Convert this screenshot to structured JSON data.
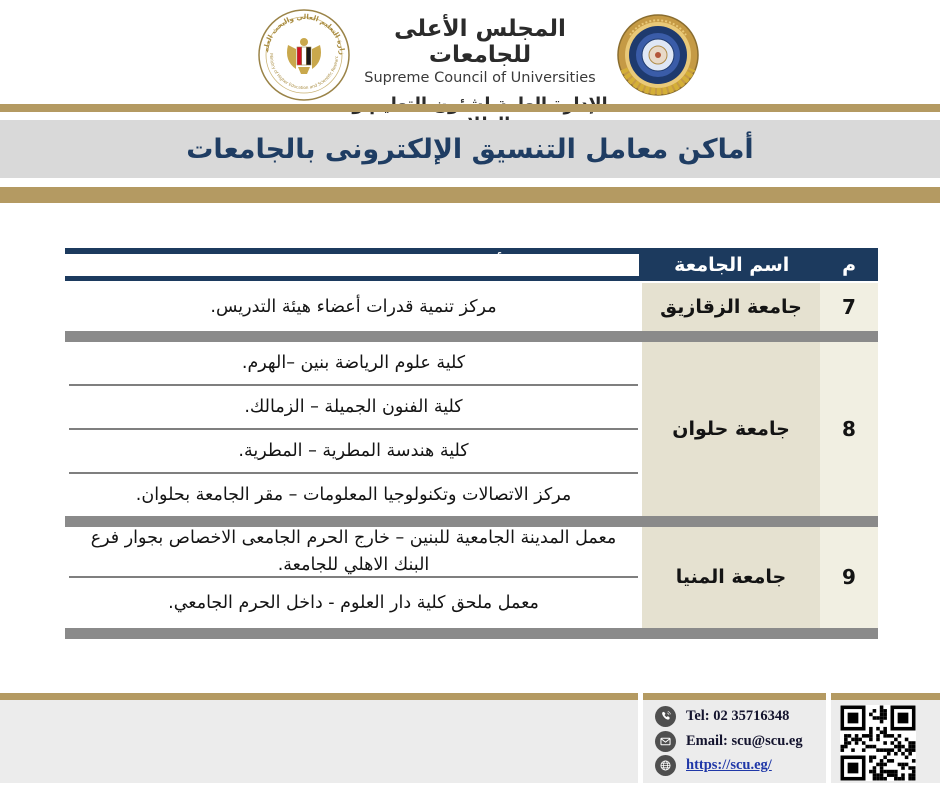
{
  "header": {
    "org_title_ar": "المجلس الأعلى للجامعات",
    "org_title_en": "Supreme Council of Universities",
    "dept_ar": "الإدارة العامة لشئون التعليم و الطلاب",
    "ministry_logo": {
      "icon": "ministry-emblem-icon",
      "ring_text_ar": "وزارة التعليم العالي والبحث العلمي",
      "ring_text_en": "Ministry of Higher Education and Scientific Research"
    },
    "scu_seal_icon": "scu-gold-seal-icon"
  },
  "page_title": "أماكن معامل التنسيق الإلكترونى بالجامعات",
  "table": {
    "headers": {
      "num": "م",
      "university": "اسم الجامعة",
      "locations": "أماكن معامل التنسيق الالكترونى"
    },
    "rows": [
      {
        "num": "7",
        "university": "جامعة الزقازيق",
        "locations": [
          "مركز تنمية قدرات أعضاء هيئة التدريس."
        ]
      },
      {
        "num": "8",
        "university": "جامعة حلوان",
        "locations": [
          "كلية علوم الرياضة بنين –الهرم.",
          "كلية الفنون الجميلة – الزمالك.",
          "كلية هندسة المطرية – المطرية.",
          "مركز الاتصالات وتكنولوجيا المعلومات – مقر الجامعة بحلوان."
        ]
      },
      {
        "num": "9",
        "university": "جامعة المنيا",
        "locations": [
          "معمل المدينة الجامعية للبنين – خارج الحرم الجامعى الاخصاص بجوار فرع البنك الاهلي للجامعة.",
          "معمل ملحق كلية دار العلوم - داخل الحرم الجامعي."
        ]
      }
    ]
  },
  "footer": {
    "tel_label": "Tel:",
    "tel_value": "02 35716348",
    "email_label": "Email:",
    "email_value": "scu@scu.eg",
    "url": "https://scu.eg/",
    "icons": [
      "phone-icon",
      "email-icon",
      "globe-icon",
      "qr-code"
    ]
  },
  "colors": {
    "gold": "#b49a62",
    "navy_header": "#1c3a5e",
    "title_navy": "#1f3d63",
    "title_band_gray": "#d9d9d9",
    "university_cell": "#e5e1d0",
    "number_cell": "#f1efe2",
    "row_separator_gray": "#8a8a8a",
    "footer_band": "#ececec",
    "link_blue": "#2038a8"
  }
}
